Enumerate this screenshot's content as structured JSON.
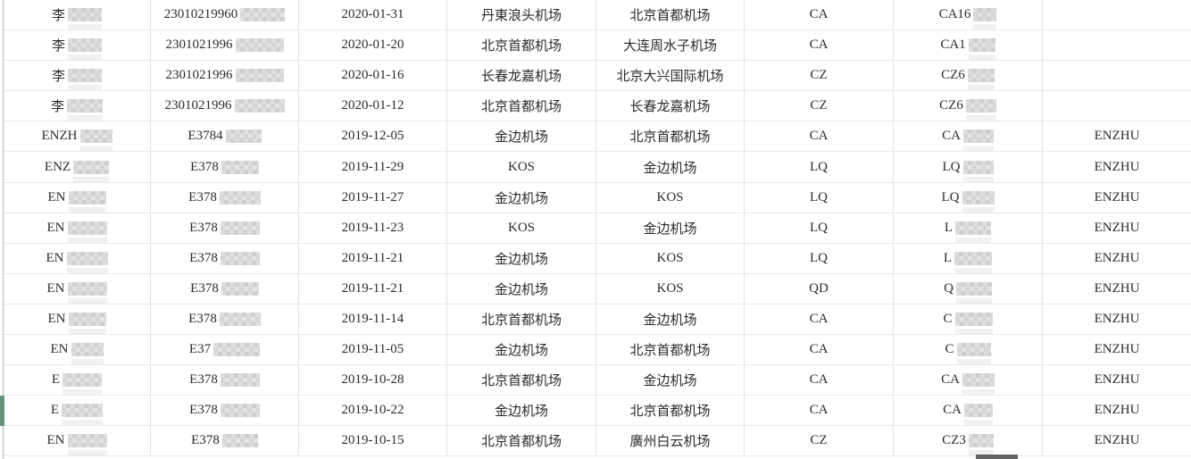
{
  "app": {
    "description": "flight-record spreadsheet fragment, gridlines only, no visible headers",
    "text_color": "#2b2b2b",
    "grid_color": "#e3e3e3",
    "left_border_color": "#b6b6b6",
    "green_marker_color": "#649478",
    "green_marker_row": 14,
    "redaction_color": "#cfcfcf"
  },
  "table": {
    "columns": [
      "name",
      "id_number",
      "date",
      "departure_airport",
      "arrival_airport",
      "airline_code",
      "flight_number",
      "tag"
    ],
    "rows": [
      {
        "name_prefix": "李",
        "name_blur": 38,
        "id_prefix": "23010219960",
        "id_blur": 50,
        "date": "2020-01-31",
        "from": "丹東浪头机场",
        "to": "北京首都机场",
        "airline": "CA",
        "flight_prefix": "CA16",
        "flight_blur": 26,
        "tag": ""
      },
      {
        "name_prefix": "李",
        "name_blur": 38,
        "id_prefix": "2301021996",
        "id_blur": 54,
        "date": "2020-01-20",
        "from": "北京首都机场",
        "to": "大连周水子机场",
        "airline": "CA",
        "flight_prefix": "CA1",
        "flight_blur": 30,
        "tag": ""
      },
      {
        "name_prefix": "李",
        "name_blur": 38,
        "id_prefix": "2301021996",
        "id_blur": 54,
        "date": "2020-01-16",
        "from": "长春龙嘉机场",
        "to": "北京大兴国际机场",
        "airline": "CZ",
        "flight_prefix": "CZ6",
        "flight_blur": 30,
        "tag": ""
      },
      {
        "name_prefix": "李",
        "name_blur": 40,
        "id_prefix": "2301021996",
        "id_blur": 56,
        "date": "2020-01-12",
        "from": "北京首都机场",
        "to": "长春龙嘉机场",
        "airline": "CZ",
        "flight_prefix": "CZ6",
        "flight_blur": 34,
        "tag": ""
      },
      {
        "name_prefix": "ENZH",
        "name_blur": 36,
        "id_prefix": "E3784",
        "id_blur": 40,
        "date": "2019-12-05",
        "from": "金边机场",
        "to": "北京首都机场",
        "airline": "CA",
        "flight_prefix": "CA",
        "flight_blur": 34,
        "tag": "ENZHU"
      },
      {
        "name_prefix": "ENZ",
        "name_blur": 40,
        "id_prefix": "E378",
        "id_blur": 42,
        "date": "2019-11-29",
        "from": "KOS",
        "to": "金边机场",
        "airline": "LQ",
        "flight_prefix": "LQ",
        "flight_blur": 34,
        "tag": "ENZHU"
      },
      {
        "name_prefix": "EN",
        "name_blur": 42,
        "id_prefix": "E378",
        "id_blur": 46,
        "date": "2019-11-27",
        "from": "金边机场",
        "to": "KOS",
        "airline": "LQ",
        "flight_prefix": "LQ",
        "flight_blur": 36,
        "tag": "ENZHU"
      },
      {
        "name_prefix": "EN",
        "name_blur": 44,
        "id_prefix": "E378",
        "id_blur": 44,
        "date": "2019-11-23",
        "from": "KOS",
        "to": "金边机场",
        "airline": "LQ",
        "flight_prefix": "L",
        "flight_blur": 40,
        "tag": "ENZHU"
      },
      {
        "name_prefix": "EN",
        "name_blur": 46,
        "id_prefix": "E378",
        "id_blur": 44,
        "date": "2019-11-21",
        "from": "金边机场",
        "to": "KOS",
        "airline": "LQ",
        "flight_prefix": "L",
        "flight_blur": 42,
        "tag": "ENZHU"
      },
      {
        "name_prefix": "EN",
        "name_blur": 44,
        "id_prefix": "E378",
        "id_blur": 42,
        "date": "2019-11-21",
        "from": "金边机场",
        "to": "KOS",
        "airline": "QD",
        "flight_prefix": "Q",
        "flight_blur": 40,
        "tag": "ENZHU"
      },
      {
        "name_prefix": "EN",
        "name_blur": 42,
        "id_prefix": "E378",
        "id_blur": 46,
        "date": "2019-11-14",
        "from": "北京首都机场",
        "to": "金边机场",
        "airline": "CA",
        "flight_prefix": "C",
        "flight_blur": 42,
        "tag": "ENZHU"
      },
      {
        "name_prefix": "EN",
        "name_blur": 36,
        "id_prefix": "E37",
        "id_blur": 52,
        "date": "2019-11-05",
        "from": "金边机场",
        "to": "北京首都机场",
        "airline": "CA",
        "flight_prefix": "C",
        "flight_blur": 38,
        "tag": "ENZHU"
      },
      {
        "name_prefix": "E",
        "name_blur": 44,
        "id_prefix": "E378",
        "id_blur": 44,
        "date": "2019-10-28",
        "from": "北京首都机场",
        "to": "金边机场",
        "airline": "CA",
        "flight_prefix": "CA",
        "flight_blur": 36,
        "tag": "ENZHU"
      },
      {
        "name_prefix": "E",
        "name_blur": 46,
        "id_prefix": "E378",
        "id_blur": 44,
        "date": "2019-10-22",
        "from": "金边机场",
        "to": "北京首都机场",
        "airline": "CA",
        "flight_prefix": "CA",
        "flight_blur": 32,
        "tag": "ENZHU"
      },
      {
        "name_prefix": "EN",
        "name_blur": 44,
        "id_prefix": "E378",
        "id_blur": 40,
        "date": "2019-10-15",
        "from": "北京首都机场",
        "to": "廣州白云机场",
        "airline": "CZ",
        "flight_prefix": "CZ3",
        "flight_blur": 28,
        "tag": "ENZHU"
      }
    ]
  }
}
